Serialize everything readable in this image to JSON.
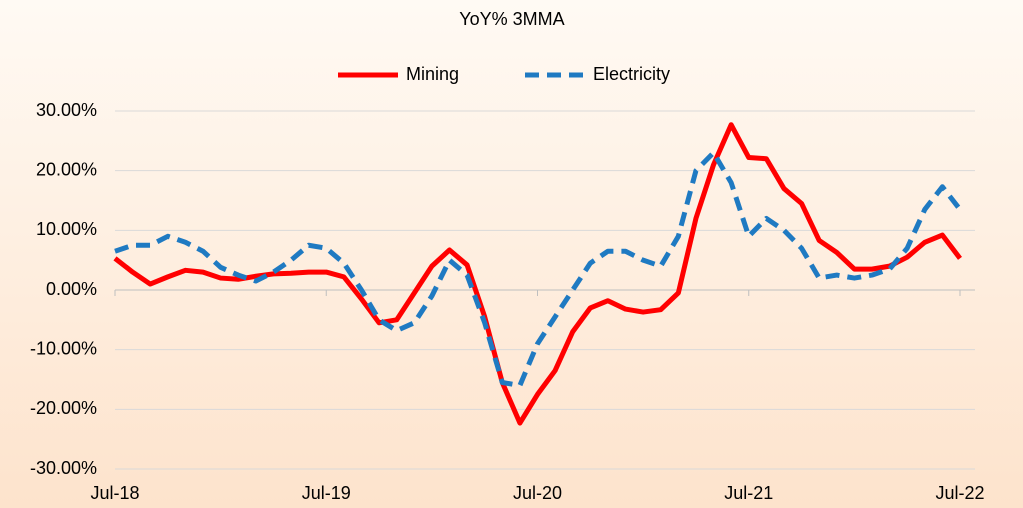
{
  "chart_data": {
    "type": "line",
    "title": "YoY% 3MMA",
    "categories": [
      "Jul-18",
      null,
      null,
      null,
      null,
      null,
      null,
      null,
      null,
      null,
      null,
      null,
      "Jul-19",
      null,
      null,
      null,
      null,
      null,
      null,
      null,
      null,
      null,
      null,
      null,
      "Jul-20",
      null,
      null,
      null,
      null,
      null,
      null,
      null,
      null,
      null,
      null,
      null,
      "Jul-21",
      null,
      null,
      null,
      null,
      null,
      null,
      null,
      null,
      null,
      null,
      null,
      "Jul-22"
    ],
    "series": [
      {
        "name": "Mining",
        "color": "#ff0000",
        "dash": false,
        "values": [
          5.3,
          3.0,
          1.0,
          2.2,
          3.3,
          3.0,
          2.0,
          1.8,
          2.3,
          2.7,
          2.8,
          3.0,
          3.0,
          2.2,
          -1.5,
          -5.5,
          -5.0,
          -0.5,
          4.0,
          6.7,
          4.2,
          -4.5,
          -15.5,
          -22.3,
          -17.5,
          -13.5,
          -7.0,
          -3.0,
          -1.8,
          -3.2,
          -3.7,
          -3.3,
          -0.5,
          12.0,
          21.0,
          27.7,
          22.2,
          22.0,
          17.0,
          14.5,
          8.3,
          6.3,
          3.5,
          3.5,
          4.0,
          5.5,
          8.0,
          9.2,
          5.3
        ]
      },
      {
        "name": "Electricity",
        "color": "#1f7ac2",
        "dash": true,
        "values": [
          6.5,
          7.5,
          7.5,
          9.0,
          8.0,
          6.5,
          3.8,
          2.5,
          1.5,
          3.0,
          5.0,
          7.5,
          7.0,
          4.5,
          0.0,
          -5.0,
          -6.8,
          -5.5,
          -1.0,
          5.0,
          2.5,
          -5.5,
          -15.5,
          -16.0,
          -9.0,
          -4.5,
          0.0,
          4.5,
          6.5,
          6.5,
          5.0,
          4.0,
          9.0,
          20.0,
          23.0,
          18.0,
          9.0,
          12.0,
          10.0,
          7.0,
          2.0,
          2.5,
          2.0,
          2.5,
          3.5,
          7.0,
          13.5,
          17.3,
          13.5
        ]
      }
    ],
    "ylim": [
      -30,
      30
    ],
    "yticks": [
      {
        "value": 30,
        "label": "30.00%"
      },
      {
        "value": 20,
        "label": "20.00%"
      },
      {
        "value": 10,
        "label": "10.00%"
      },
      {
        "value": 0,
        "label": "0.00%"
      },
      {
        "value": -10,
        "label": "-10.00%"
      },
      {
        "value": -20,
        "label": "-20.00%"
      },
      {
        "value": -30,
        "label": "-30.00%"
      }
    ],
    "grid": true,
    "legend": "top"
  }
}
